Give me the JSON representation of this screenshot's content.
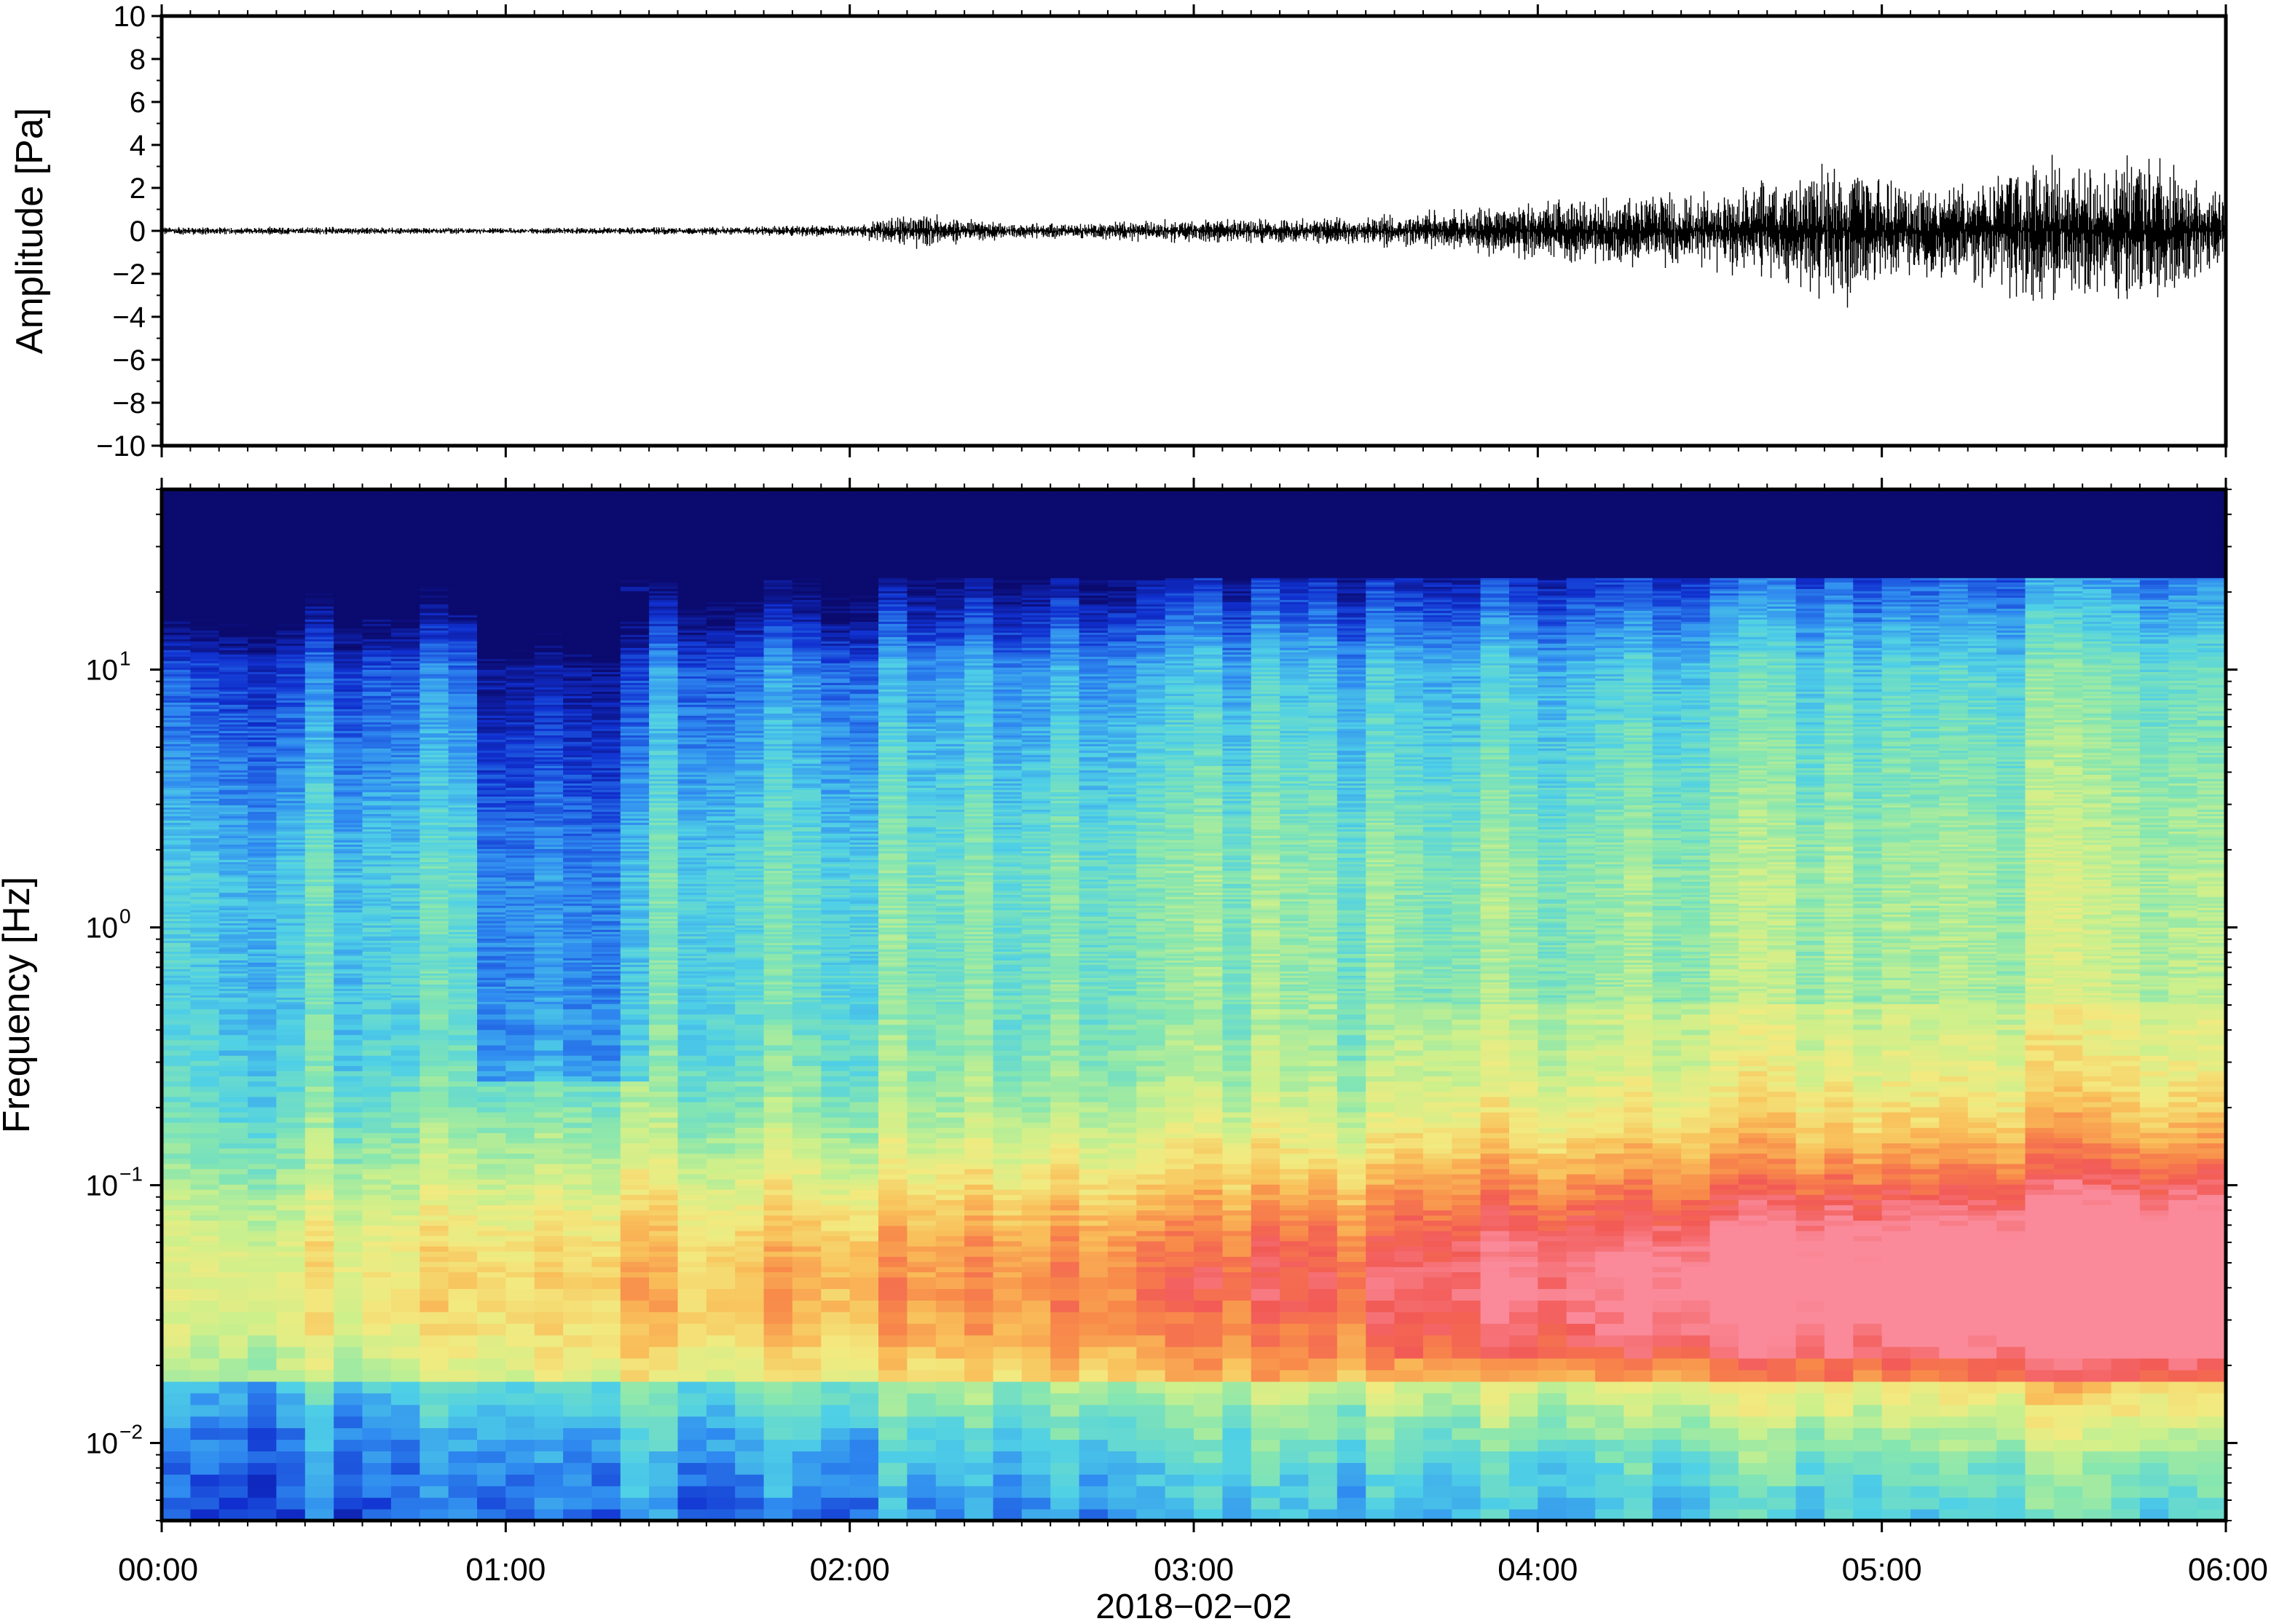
{
  "chart_data": [
    {
      "type": "line",
      "title": "",
      "ylabel": "Amplitude [Pa]",
      "xlabel": "",
      "xlim": [
        "00:00",
        "06:00"
      ],
      "ylim": [
        -10,
        10
      ],
      "y_ticks": [
        10,
        8,
        6,
        4,
        2,
        0,
        -2,
        -4,
        -6,
        -8,
        -10
      ],
      "y_tick_labels": [
        "10",
        "8",
        "6",
        "4",
        "2",
        "0",
        "−2",
        "−4",
        "−6",
        "−8",
        "−10"
      ],
      "series": [
        {
          "color": "#000000",
          "envelope": {
            "time_hours": [
              0.0,
              0.5,
              1.0,
              1.5,
              2.0,
              2.2,
              2.5,
              3.0,
              3.3,
              3.6,
              3.8,
              4.0,
              4.2,
              4.5,
              4.75,
              4.9,
              5.0,
              5.25,
              5.4,
              5.6,
              5.75,
              6.0
            ],
            "max_abs_amplitude_pa": [
              0.2,
              0.2,
              0.15,
              0.2,
              0.3,
              0.9,
              0.35,
              0.6,
              0.6,
              0.9,
              1.2,
              1.6,
              1.7,
              1.9,
              2.8,
              4.2,
              2.4,
              2.7,
              3.8,
              3.3,
              4.2,
              2.0
            ]
          }
        }
      ],
      "grid": false
    },
    {
      "type": "heatmap",
      "title": "",
      "ylabel": "Frequency [Hz]",
      "xlabel": "2018−02−02",
      "x_ticks": [
        "00:00",
        "01:00",
        "02:00",
        "03:00",
        "04:00",
        "05:00",
        "06:00"
      ],
      "y_scale": "log",
      "ylim": [
        0.005,
        50
      ],
      "y_ticks": [
        0.01,
        0.1,
        1,
        10
      ],
      "y_tick_labels": [
        {
          "base": "10",
          "exp": "−2"
        },
        {
          "base": "10",
          "exp": "−1"
        },
        {
          "base": "10",
          "exp": "0"
        },
        {
          "base": "10",
          "exp": "1"
        }
      ],
      "colormap": [
        "#0b0a6e",
        "#1030d0",
        "#2f8af0",
        "#4fd0e6",
        "#86e6b0",
        "#ccf08c",
        "#f2ea80",
        "#f9c05a",
        "#f88a4a",
        "#f25a55",
        "#fa8a9a"
      ],
      "grid": false
    }
  ]
}
